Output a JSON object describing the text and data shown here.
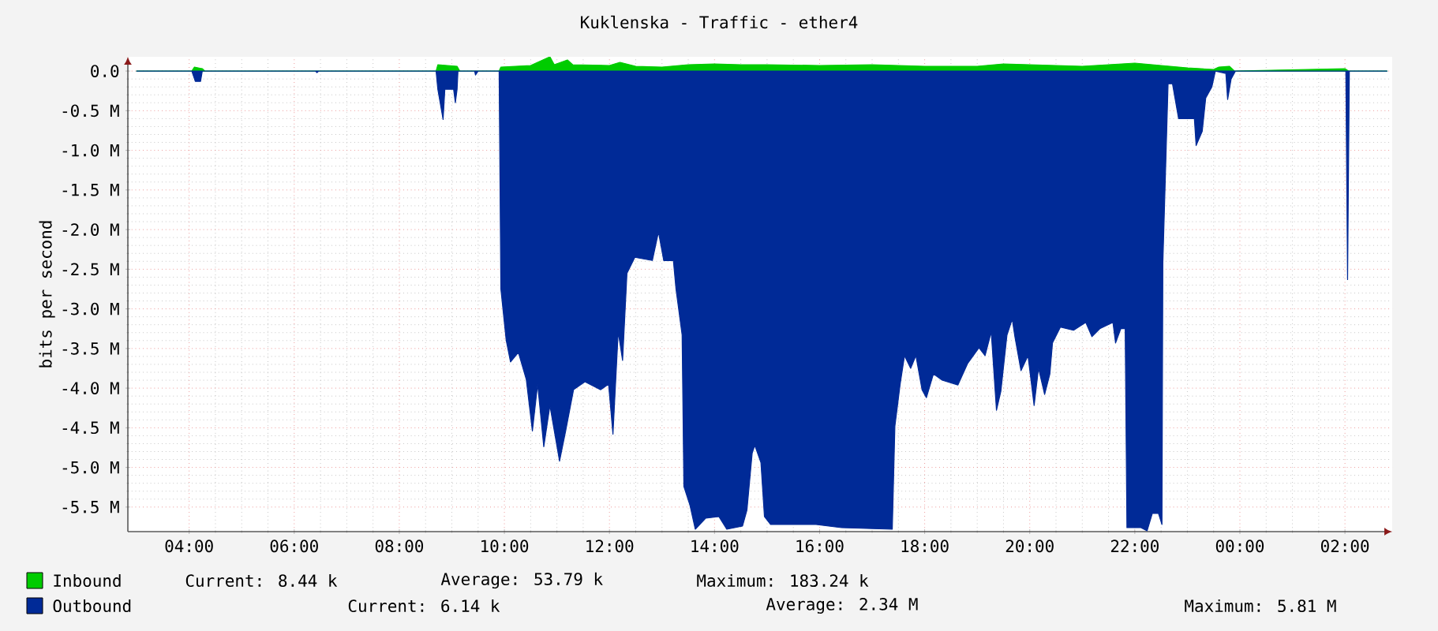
{
  "chart_data": {
    "type": "area",
    "title": "Kuklenska - Traffic - ether4",
    "ylabel": "bits per second",
    "xlim": [
      "--01-01T02:50",
      "--01-02T02:54"
    ],
    "ylim": [
      -5.81,
      0.18
    ],
    "xticks": [
      {
        "value": "--01-01T04:00",
        "label": "04:00"
      },
      {
        "value": "--01-01T06:00",
        "label": "06:00"
      },
      {
        "value": "--01-01T08:00",
        "label": "08:00"
      },
      {
        "value": "--01-01T10:00",
        "label": "10:00"
      },
      {
        "value": "--01-01T12:00",
        "label": "12:00"
      },
      {
        "value": "--01-01T14:00",
        "label": "14:00"
      },
      {
        "value": "--01-01T16:00",
        "label": "16:00"
      },
      {
        "value": "--01-01T18:00",
        "label": "18:00"
      },
      {
        "value": "--01-01T20:00",
        "label": "20:00"
      },
      {
        "value": "--01-01T22:00",
        "label": "22:00"
      },
      {
        "value": "--01-02T00:00",
        "label": "00:00"
      },
      {
        "value": "--01-02T02:00",
        "label": "02:00"
      }
    ],
    "yticks": [
      {
        "value": 0,
        "label": "0.0"
      },
      {
        "value": -0.5,
        "label": "-0.5 M"
      },
      {
        "value": -1,
        "label": "-1.0 M"
      },
      {
        "value": -1.5,
        "label": "-1.5 M"
      },
      {
        "value": -2,
        "label": "-2.0 M"
      },
      {
        "value": -2.5,
        "label": "-2.5 M"
      },
      {
        "value": -3,
        "label": "-3.0 M"
      },
      {
        "value": -3.5,
        "label": "-3.5 M"
      },
      {
        "value": -4,
        "label": "-4.0 M"
      },
      {
        "value": -4.5,
        "label": "-4.5 M"
      },
      {
        "value": -5,
        "label": "-5.0 M"
      },
      {
        "value": -5.5,
        "label": "-5.5 M"
      }
    ],
    "grid": true,
    "legend": "bottom left",
    "series": [
      {
        "name": "Inbound",
        "color": "#00cc00",
        "x": [
          "--01-01T03:00",
          "--01-01T04:03",
          "--01-01T04:06",
          "--01-01T04:15",
          "--01-01T04:18",
          "--01-01T08:42",
          "--01-01T08:44",
          "--01-01T09:06",
          "--01-01T09:09",
          "--01-01T09:54",
          "--01-01T09:56",
          "--01-01T10:30",
          "--01-01T10:52",
          "--01-01T10:57",
          "--01-01T11:12",
          "--01-01T11:18",
          "--01-01T12:00",
          "--01-01T12:12",
          "--01-01T12:30",
          "--01-01T13:00",
          "--01-01T13:30",
          "--01-01T14:00",
          "--01-01T14:30",
          "--01-01T15:00",
          "--01-01T16:00",
          "--01-01T17:00",
          "--01-01T18:00",
          "--01-01T19:00",
          "--01-01T19:30",
          "--01-01T20:00",
          "--01-01T21:00",
          "--01-01T22:00",
          "--01-01T22:30",
          "--01-01T23:00",
          "--01-01T23:30",
          "--01-01T23:36",
          "--01-01T23:48",
          "--01-01T23:54",
          "--01-02T02:00",
          "--01-02T02:04",
          "--01-02T02:48"
        ],
        "values": [
          0,
          0,
          0.05,
          0.03,
          0,
          0,
          0.08,
          0.06,
          0,
          0,
          0.05,
          0.07,
          0.18,
          0.08,
          0.14,
          0.08,
          0.07,
          0.11,
          0.06,
          0.05,
          0.08,
          0.09,
          0.08,
          0.08,
          0.07,
          0.08,
          0.06,
          0.06,
          0.09,
          0.08,
          0.06,
          0.1,
          0.07,
          0.04,
          0.02,
          0.05,
          0.06,
          0,
          0.03,
          0,
          0
        ]
      },
      {
        "name": "Outbound",
        "color": "#002a97",
        "x": [
          "--01-01T03:00",
          "--01-01T04:03",
          "--01-01T04:07",
          "--01-01T04:13",
          "--01-01T04:15",
          "--01-01T06:24",
          "--01-01T06:26",
          "--01-01T06:28",
          "--01-01T08:42",
          "--01-01T08:44",
          "--01-01T08:50",
          "--01-01T08:52",
          "--01-01T09:02",
          "--01-01T09:04",
          "--01-01T09:06",
          "--01-01T09:07",
          "--01-01T09:26",
          "--01-01T09:27",
          "--01-01T09:30",
          "--01-01T09:54",
          "--01-01T09:56",
          "--01-01T10:02",
          "--01-01T10:07",
          "--01-01T10:16",
          "--01-01T10:25",
          "--01-01T10:32",
          "--01-01T10:38",
          "--01-01T10:45",
          "--01-01T10:52",
          "--01-01T11:03",
          "--01-01T11:10",
          "--01-01T11:19",
          "--01-01T11:32",
          "--01-01T11:50",
          "--01-01T11:59",
          "--01-01T12:04",
          "--01-01T12:10",
          "--01-01T12:15",
          "--01-01T12:20",
          "--01-01T12:29",
          "--01-01T12:49",
          "--01-01T12:56",
          "--01-01T13:02",
          "--01-01T13:13",
          "--01-01T13:16",
          "--01-01T13:23",
          "--01-01T13:25",
          "--01-01T13:32",
          "--01-01T13:38",
          "--01-01T13:50",
          "--01-01T14:05",
          "--01-01T14:14",
          "--01-01T14:32",
          "--01-01T14:37",
          "--01-01T14:43",
          "--01-01T14:46",
          "--01-01T14:53",
          "--01-01T14:57",
          "--01-01T15:04",
          "--01-01T15:26",
          "--01-01T15:56",
          "--01-01T16:25",
          "--01-01T17:23",
          "--01-01T17:26",
          "--01-01T17:32",
          "--01-01T17:37",
          "--01-01T17:44",
          "--01-01T17:50",
          "--01-01T17:57",
          "--01-01T18:02",
          "--01-01T18:10",
          "--01-01T18:20",
          "--01-01T18:38",
          "--01-01T18:49",
          "--01-01T19:02",
          "--01-01T19:09",
          "--01-01T19:16",
          "--01-01T19:22",
          "--01-01T19:27",
          "--01-01T19:34",
          "--01-01T19:40",
          "--01-01T19:43",
          "--01-01T19:50",
          "--01-01T19:58",
          "--01-01T20:05",
          "--01-01T20:10",
          "--01-01T20:17",
          "--01-01T20:23",
          "--01-01T20:26",
          "--01-01T20:35",
          "--01-01T20:50",
          "--01-01T21:04",
          "--01-01T21:11",
          "--01-01T21:20",
          "--01-01T21:35",
          "--01-01T21:38",
          "--01-01T21:44",
          "--01-01T21:49",
          "--01-01T21:51",
          "--01-01T22:07",
          "--01-01T22:14",
          "--01-01T22:20",
          "--01-01T22:27",
          "--01-01T22:31",
          "--01-01T22:32",
          "--01-01T22:38",
          "--01-01T22:43",
          "--01-01T22:50",
          "--01-01T23:08",
          "--01-01T23:10",
          "--01-01T23:17",
          "--01-01T23:21",
          "--01-01T23:28",
          "--01-01T23:32",
          "--01-01T23:44",
          "--01-01T23:46",
          "--01-01T23:50",
          "--01-01T23:55",
          "--01-02T02:01",
          "--01-02T02:03",
          "--01-02T02:05",
          "--01-02T02:48"
        ],
        "values": [
          0,
          0,
          -0.13,
          -0.13,
          0,
          0,
          -0.02,
          0,
          0,
          -0.23,
          -0.61,
          -0.23,
          -0.23,
          -0.4,
          -0.23,
          0,
          0,
          -0.05,
          0,
          0,
          -2.75,
          -3.39,
          -3.67,
          -3.55,
          -3.89,
          -4.54,
          -3.95,
          -4.74,
          -4.22,
          -4.92,
          -4.54,
          -4.02,
          -3.92,
          -4.02,
          -3.95,
          -4.58,
          -3.29,
          -3.65,
          -2.55,
          -2.35,
          -2.39,
          -2.03,
          -2.39,
          -2.39,
          -2.75,
          -3.33,
          -5.24,
          -5.48,
          -5.78,
          -5.64,
          -5.62,
          -5.78,
          -5.74,
          -5.54,
          -4.82,
          -4.72,
          -4.94,
          -5.62,
          -5.72,
          -5.72,
          -5.72,
          -5.76,
          -5.78,
          -4.48,
          -3.95,
          -3.59,
          -3.75,
          -3.59,
          -4.02,
          -4.12,
          -3.82,
          -3.9,
          -3.96,
          -3.69,
          -3.49,
          -3.59,
          -3.29,
          -4.28,
          -4.04,
          -3.33,
          -3.13,
          -3.35,
          -3.78,
          -3.59,
          -4.22,
          -3.75,
          -4.08,
          -3.82,
          -3.43,
          -3.23,
          -3.27,
          -3.17,
          -3.35,
          -3.25,
          -3.17,
          -3.43,
          -3.25,
          -3.25,
          -5.76,
          -5.76,
          -5.8,
          -5.58,
          -5.58,
          -5.72,
          -2.43,
          -0.16,
          -0.16,
          -0.6,
          -0.6,
          -0.94,
          -0.76,
          -0.34,
          -0.2,
          0,
          -0.03,
          -0.36,
          -0.1,
          0,
          0,
          -2.63,
          0,
          0
        ]
      }
    ],
    "annotations": [
      "Current: 8.44 k",
      "Average: 53.79 k",
      "Maximum: 183.24 k",
      "Current: 6.14 k",
      "Average: 2.34 M",
      "Maximum: 5.81 M"
    ]
  }
}
